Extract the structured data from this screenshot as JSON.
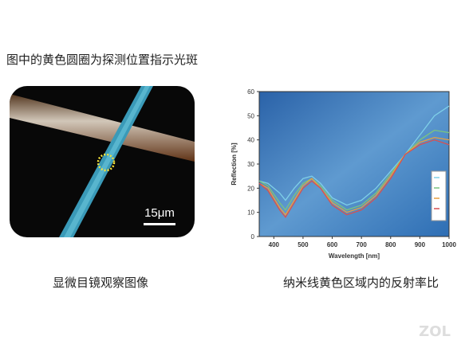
{
  "header": {
    "title": "图中的黄色圆圈为探测位置指示光斑"
  },
  "image": {
    "scale_bar": "15μm",
    "caption": "显微目镜观察图像"
  },
  "chart_data": {
    "type": "line",
    "xlabel": "Wavelength [nm]",
    "ylabel": "Reflection [%]",
    "x": [
      350,
      380,
      420,
      440,
      470,
      500,
      530,
      560,
      600,
      650,
      700,
      750,
      800,
      850,
      900,
      950,
      1000
    ],
    "series": [
      {
        "color": "#7fd0e8",
        "values": [
          23,
          22,
          18,
          15,
          20,
          24,
          25,
          22,
          16,
          13,
          15,
          20,
          27,
          34,
          42,
          50,
          54
        ]
      },
      {
        "color": "#7bc47f",
        "values": [
          23,
          21,
          14,
          11,
          17,
          22,
          24,
          21,
          15,
          11,
          13,
          18,
          26,
          34,
          40,
          44,
          43
        ]
      },
      {
        "color": "#e8a040",
        "values": [
          22,
          20,
          12,
          9,
          15,
          21,
          24,
          20,
          14,
          10,
          12,
          17,
          25,
          34,
          39,
          41,
          40
        ]
      },
      {
        "color": "#d85050",
        "values": [
          22,
          19,
          11,
          8,
          14,
          20,
          23,
          20,
          13,
          9,
          11,
          16,
          24,
          34,
          38,
          40,
          38
        ]
      }
    ],
    "xlim": [
      350,
      1000
    ],
    "ylim": [
      0,
      60
    ],
    "xticks": [
      400,
      500,
      600,
      700,
      800,
      900,
      1000
    ],
    "yticks": [
      0,
      10,
      20,
      30,
      40,
      50,
      60
    ],
    "caption": "纳米线黄色区域内的反射率比"
  },
  "watermark": "ZOL"
}
